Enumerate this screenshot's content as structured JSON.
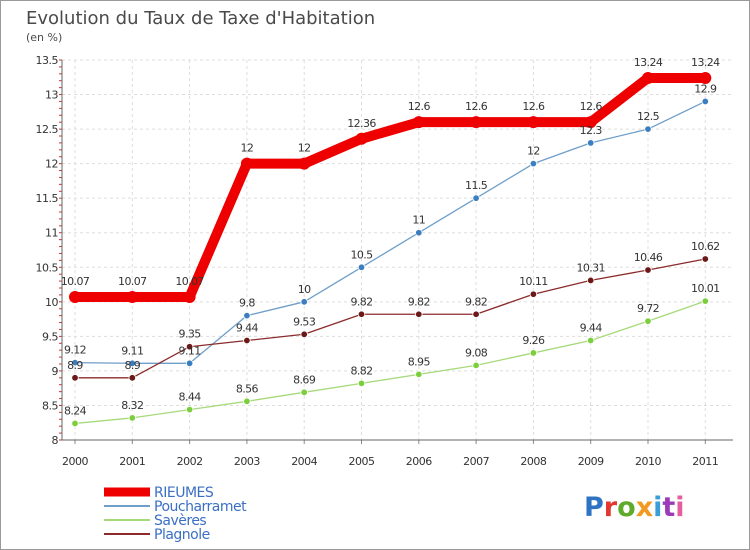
{
  "chart_data": {
    "type": "line",
    "title": "Evolution du Taux de Taxe d'Habitation",
    "subtitle": "(en %)",
    "xlabel": "",
    "ylabel": "",
    "x": [
      "2000",
      "2001",
      "2002",
      "2003",
      "2004",
      "2005",
      "2006",
      "2007",
      "2008",
      "2009",
      "2010",
      "2011"
    ],
    "ylim": [
      8,
      13.5
    ],
    "yticks": [
      "8",
      "8.5",
      "9",
      "9.5",
      "10",
      "10.5",
      "11",
      "11.5",
      "12",
      "12.5",
      "13",
      "13.5"
    ],
    "grid": true,
    "legend_position": "bottom-left",
    "series": [
      {
        "name": "RIEUMES",
        "color": "#ee0000",
        "emphasis": true,
        "values": [
          10.07,
          10.07,
          10.07,
          12,
          12,
          12.36,
          12.6,
          12.6,
          12.6,
          12.6,
          13.24,
          13.24
        ],
        "labels": [
          "10.07",
          "10.07",
          "10.07",
          "12",
          "12",
          "12.36",
          "12.6",
          "12.6",
          "12.6",
          "12.6",
          "13.24",
          "13.24"
        ]
      },
      {
        "name": "Poucharramet",
        "color": "#6f9ec9",
        "marker": "#3c7fc0",
        "values": [
          9.12,
          9.11,
          9.11,
          9.8,
          10,
          10.5,
          11,
          11.5,
          12,
          12.3,
          12.5,
          12.9
        ],
        "labels": [
          "9.12",
          "9.11",
          "9.11",
          "9.8",
          "10",
          "10.5",
          "11",
          "11.5",
          "12",
          "12.3",
          "12.5",
          "12.9"
        ]
      },
      {
        "name": "Savères",
        "color": "#a6d97a",
        "marker": "#7ccf3c",
        "values": [
          8.24,
          8.32,
          8.44,
          8.56,
          8.69,
          8.82,
          8.95,
          9.08,
          9.26,
          9.44,
          9.72,
          10.01
        ],
        "labels": [
          "8.24",
          "8.32",
          "8.44",
          "8.56",
          "8.69",
          "8.82",
          "8.95",
          "9.08",
          "9.26",
          "9.44",
          "9.72",
          "10.01"
        ]
      },
      {
        "name": "Plagnole",
        "color": "#8b2b2b",
        "marker": "#6b1818",
        "values": [
          8.9,
          8.9,
          9.35,
          9.44,
          9.53,
          9.82,
          9.82,
          9.82,
          10.11,
          10.31,
          10.46,
          10.62
        ],
        "labels": [
          "8.9",
          "8.9",
          "9.35",
          "9.44",
          "9.53",
          "9.82",
          "9.82",
          "9.82",
          "10.11",
          "10.31",
          "10.46",
          "10.62"
        ]
      }
    ]
  },
  "brand": {
    "text": "Proxiti",
    "letter_colors": [
      "#2f74c2",
      "#e0382f",
      "#5faa2a",
      "#f29a1f",
      "#3b9ed9",
      "#9b3bb7",
      "#e45e9e"
    ]
  }
}
